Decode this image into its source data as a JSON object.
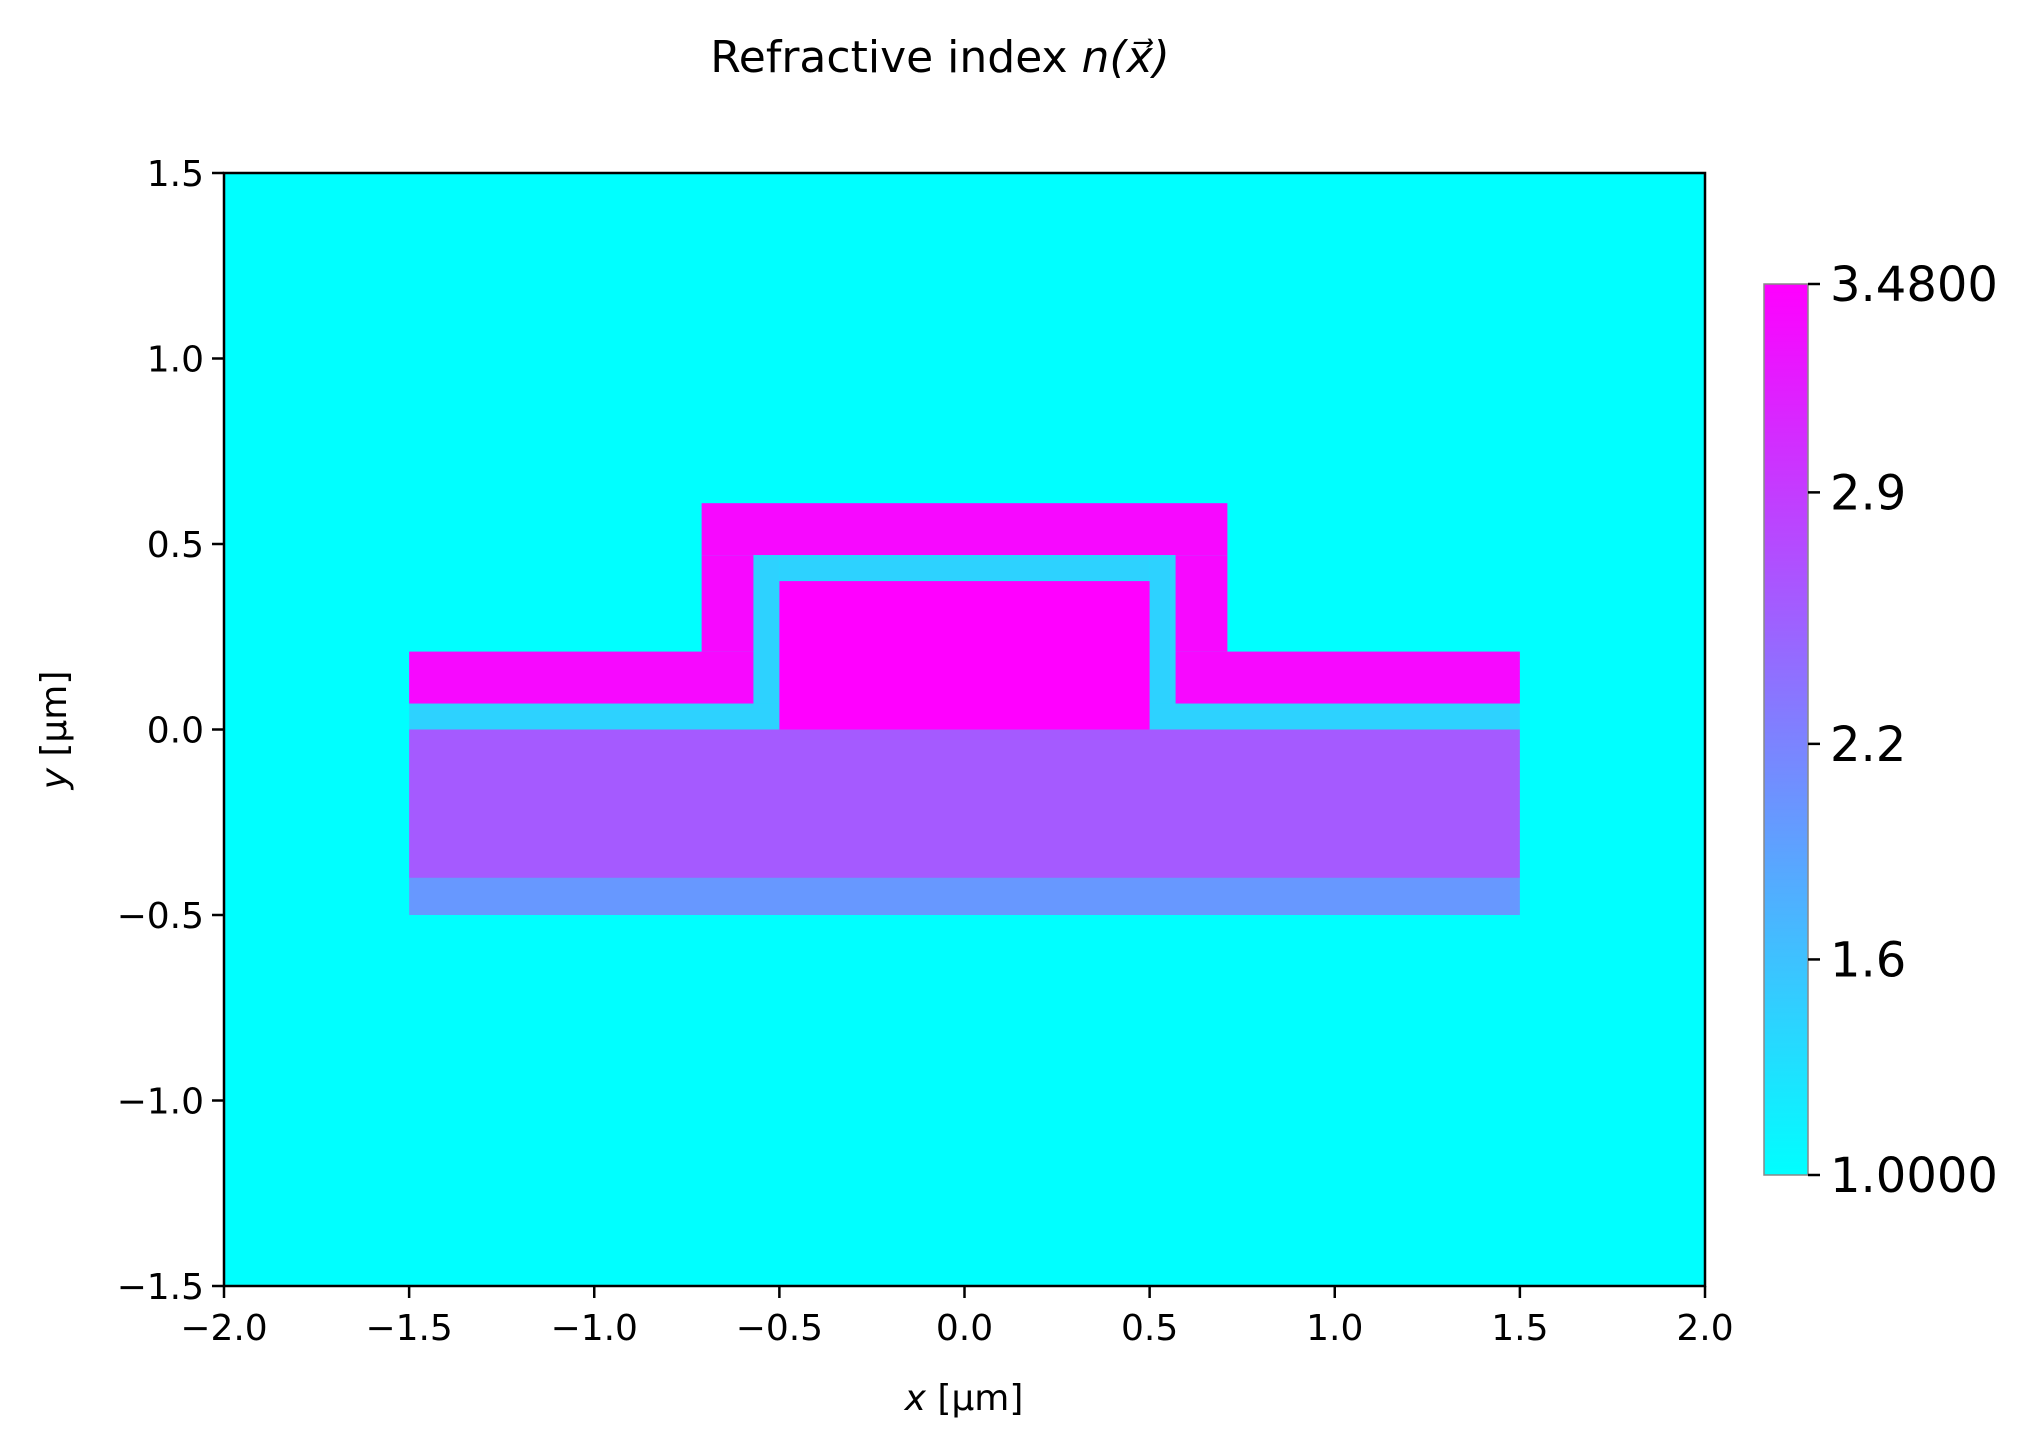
{
  "chart_data": {
    "type": "heatmap",
    "title_text": "Refractive index ",
    "title_math": "n(x⃗)",
    "xlabel_var": "x",
    "xlabel_unit": " [µm]",
    "ylabel_var": "y",
    "ylabel_unit": " [µm]",
    "xlim": [
      -2.0,
      2.0
    ],
    "ylim": [
      -1.5,
      1.5
    ],
    "xticks": [
      -2.0,
      -1.5,
      -1.0,
      -0.5,
      0.0,
      0.5,
      1.0,
      1.5,
      2.0
    ],
    "xtick_labels": [
      "−2.0",
      "−1.5",
      "−1.0",
      "−0.5",
      "0.0",
      "0.5",
      "1.0",
      "1.5",
      "2.0"
    ],
    "yticks": [
      -1.5,
      -1.0,
      -0.5,
      0.0,
      0.5,
      1.0,
      1.5
    ],
    "ytick_labels": [
      "−1.5",
      "−1.0",
      "−0.5",
      "0.0",
      "0.5",
      "1.0",
      "1.5"
    ],
    "background_value": 1.0,
    "regions": [
      {
        "id": "bottom-layer",
        "x": [
          -1.5,
          1.5
        ],
        "y": [
          -0.5,
          -0.4
        ],
        "value": 2.0
      },
      {
        "id": "substrate-layer",
        "x": [
          -1.5,
          1.5
        ],
        "y": [
          -0.4,
          0.0
        ],
        "value": 2.6
      },
      {
        "id": "thin-layer-left",
        "x": [
          -1.5,
          -0.5
        ],
        "y": [
          0.0,
          0.07
        ],
        "value": 1.44
      },
      {
        "id": "thin-layer-right",
        "x": [
          0.5,
          1.5
        ],
        "y": [
          0.0,
          0.07
        ],
        "value": 1.44
      },
      {
        "id": "cladding-left-slab",
        "x": [
          -1.5,
          -0.57
        ],
        "y": [
          0.07,
          0.21
        ],
        "value": 3.4
      },
      {
        "id": "cladding-right-slab",
        "x": [
          0.57,
          1.5
        ],
        "y": [
          0.07,
          0.21
        ],
        "value": 3.4
      },
      {
        "id": "cladding-left-wall",
        "x": [
          -0.71,
          -0.57
        ],
        "y": [
          0.21,
          0.47
        ],
        "value": 3.4
      },
      {
        "id": "cladding-right-wall",
        "x": [
          0.57,
          0.71
        ],
        "y": [
          0.21,
          0.47
        ],
        "value": 3.4
      },
      {
        "id": "cladding-top",
        "x": [
          -0.71,
          0.71
        ],
        "y": [
          0.47,
          0.61
        ],
        "value": 3.4
      },
      {
        "id": "spacer-left",
        "x": [
          -0.57,
          -0.5
        ],
        "y": [
          0.07,
          0.47
        ],
        "value": 1.44
      },
      {
        "id": "spacer-right",
        "x": [
          0.5,
          0.57
        ],
        "y": [
          0.07,
          0.47
        ],
        "value": 1.44
      },
      {
        "id": "spacer-top",
        "x": [
          -0.5,
          0.5
        ],
        "y": [
          0.4,
          0.47
        ],
        "value": 1.44
      },
      {
        "id": "core",
        "x": [
          -0.5,
          0.5
        ],
        "y": [
          0.0,
          0.4
        ],
        "value": 3.48
      }
    ],
    "colormap": "cool",
    "colorbar": {
      "vmin": 1.0,
      "vmax": 3.48,
      "ticks": [
        1.0,
        1.6,
        2.2,
        2.9,
        3.48
      ],
      "tick_labels": [
        "1.0000",
        "1.6",
        "2.2",
        "2.9",
        "3.4800"
      ]
    }
  }
}
